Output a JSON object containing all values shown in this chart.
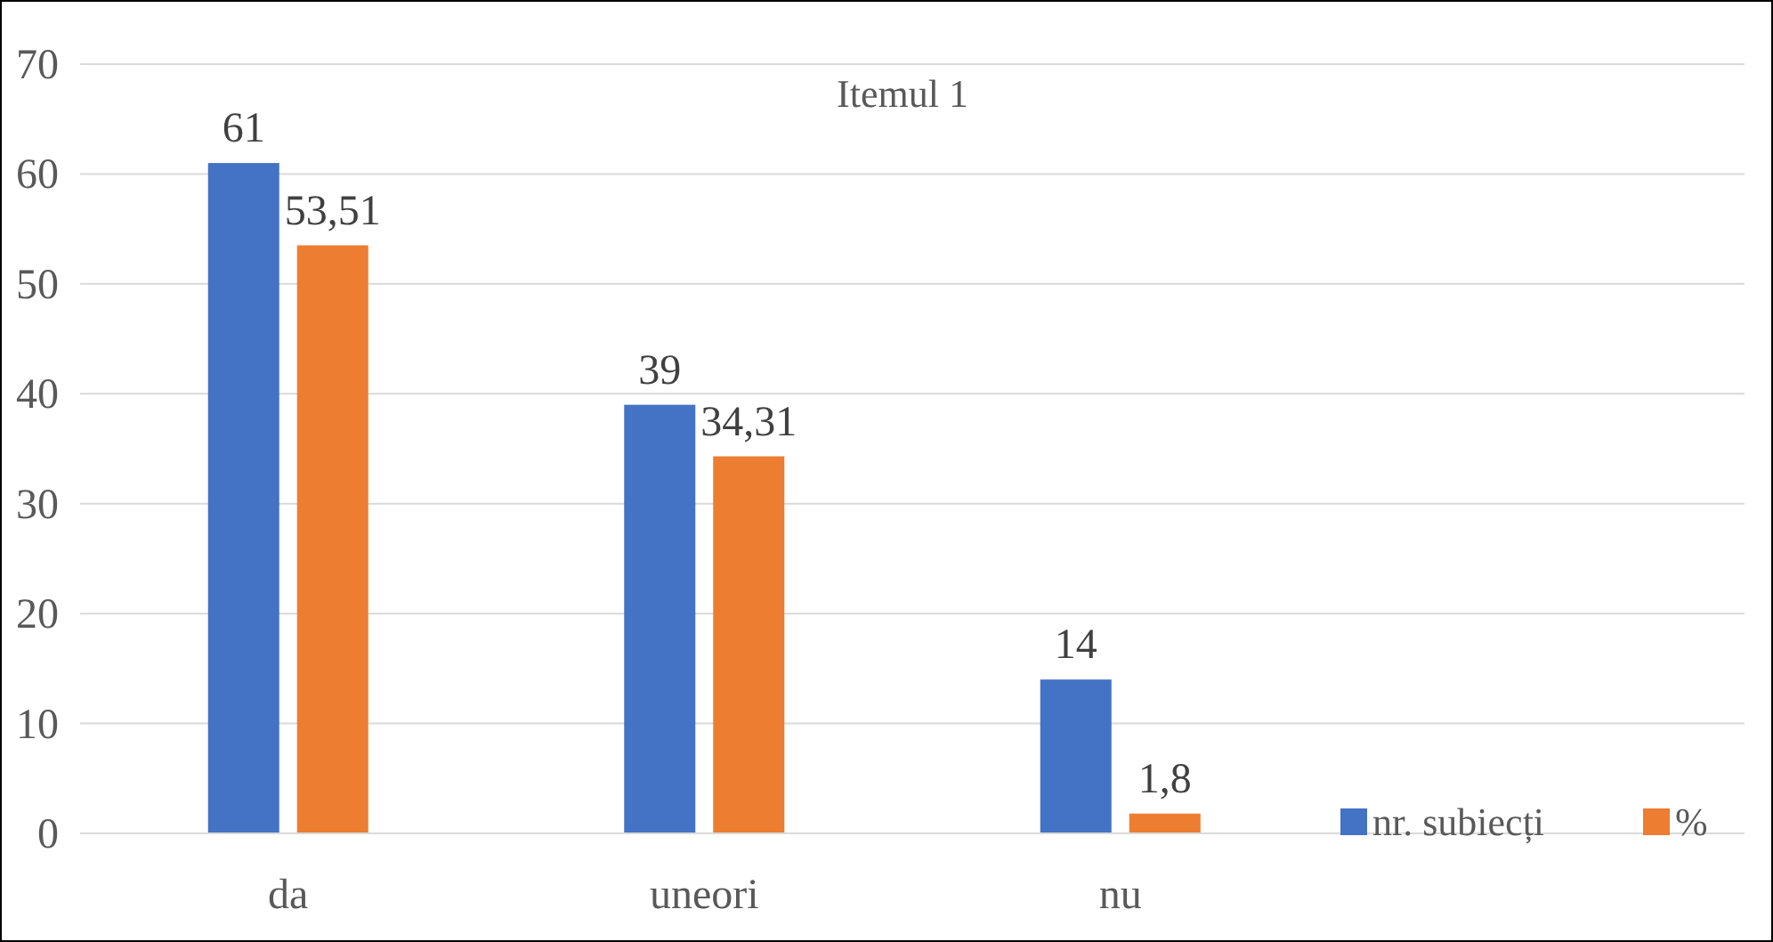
{
  "chart_data": {
    "type": "bar",
    "title": "Itemul 1",
    "categories": [
      "da",
      "uneori",
      "nu",
      null
    ],
    "series": [
      {
        "name": "nr. subiecți",
        "color": "#4472c4",
        "values": [
          61,
          39,
          14,
          null
        ],
        "value_labels": [
          "61",
          "39",
          "14",
          null
        ]
      },
      {
        "name": "%",
        "color": "#ed7d31",
        "values": [
          53.51,
          34.31,
          1.8,
          null
        ],
        "value_labels": [
          "53,51",
          "34,31",
          "1,8",
          null
        ]
      }
    ],
    "ylim": [
      0,
      70
    ],
    "yticks": [
      0,
      10,
      20,
      30,
      40,
      50,
      60,
      70
    ],
    "grid": "y",
    "legend": "bottom right"
  }
}
